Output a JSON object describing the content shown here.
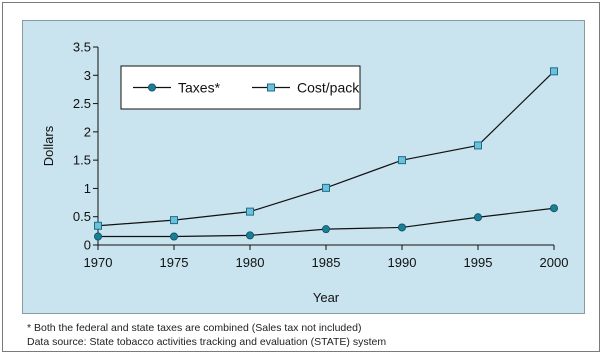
{
  "chart_data": {
    "type": "line",
    "title": "",
    "xlabel": "Year",
    "ylabel": "Dollars",
    "x": [
      1970,
      1975,
      1980,
      1985,
      1990,
      1995,
      2000
    ],
    "xticks": [
      "1970",
      "1975",
      "1980",
      "1985",
      "1990",
      "1995",
      "2000"
    ],
    "yticks": [
      "0",
      "0.5",
      "1",
      "1.5",
      "2",
      "2.5",
      "3",
      "3.5"
    ],
    "ylim": [
      0,
      3.5
    ],
    "xlim": [
      1970,
      2000
    ],
    "grid": false,
    "legend_position": "top-left",
    "series": [
      {
        "name": "Taxes*",
        "marker": "circle",
        "color": "#1a7f96",
        "values": [
          0.15,
          0.15,
          0.17,
          0.28,
          0.31,
          0.49,
          0.65
        ]
      },
      {
        "name": "Cost/pack",
        "marker": "square",
        "color": "#6ec0da",
        "values": [
          0.34,
          0.44,
          0.59,
          1.01,
          1.5,
          1.76,
          3.07
        ]
      }
    ]
  },
  "footnotes": {
    "line1": "* Both the federal and state taxes are combined (Sales tax not included)",
    "line2": "Data source: State tobacco activities tracking and evaluation (STATE) system"
  }
}
